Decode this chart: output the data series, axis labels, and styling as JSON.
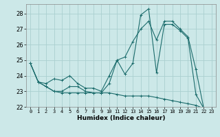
{
  "title": "",
  "xlabel": "Humidex (Indice chaleur)",
  "ylabel": "",
  "background_color": "#cce8e8",
  "grid_color": "#aad0d0",
  "line_color": "#1a6b6b",
  "xlim": [
    -0.5,
    23.5
  ],
  "ylim": [
    22,
    28.6
  ],
  "yticks": [
    22,
    23,
    24,
    25,
    26,
    27,
    28
  ],
  "xticks": [
    0,
    1,
    2,
    3,
    4,
    5,
    6,
    7,
    8,
    9,
    10,
    11,
    12,
    13,
    14,
    15,
    16,
    17,
    18,
    19,
    20,
    21,
    22,
    23
  ],
  "series": [
    [
      24.8,
      23.6,
      23.3,
      23.0,
      23.0,
      23.3,
      23.3,
      23.0,
      22.9,
      22.9,
      23.5,
      25.0,
      24.1,
      24.8,
      27.9,
      28.3,
      24.2,
      27.3,
      27.3,
      26.9,
      26.4,
      22.8,
      21.9,
      null
    ],
    [
      24.8,
      23.6,
      23.3,
      23.0,
      22.9,
      22.9,
      22.9,
      22.9,
      22.9,
      22.9,
      22.9,
      22.8,
      22.7,
      22.7,
      22.7,
      22.7,
      22.6,
      22.5,
      22.4,
      22.3,
      22.2,
      22.1,
      21.9,
      null
    ],
    [
      24.8,
      23.6,
      23.5,
      23.8,
      23.7,
      24.0,
      23.5,
      23.2,
      23.2,
      23.0,
      24.0,
      25.0,
      25.2,
      26.2,
      27.0,
      27.5,
      26.3,
      27.5,
      27.5,
      27.0,
      26.5,
      24.4,
      21.9,
      null
    ]
  ]
}
